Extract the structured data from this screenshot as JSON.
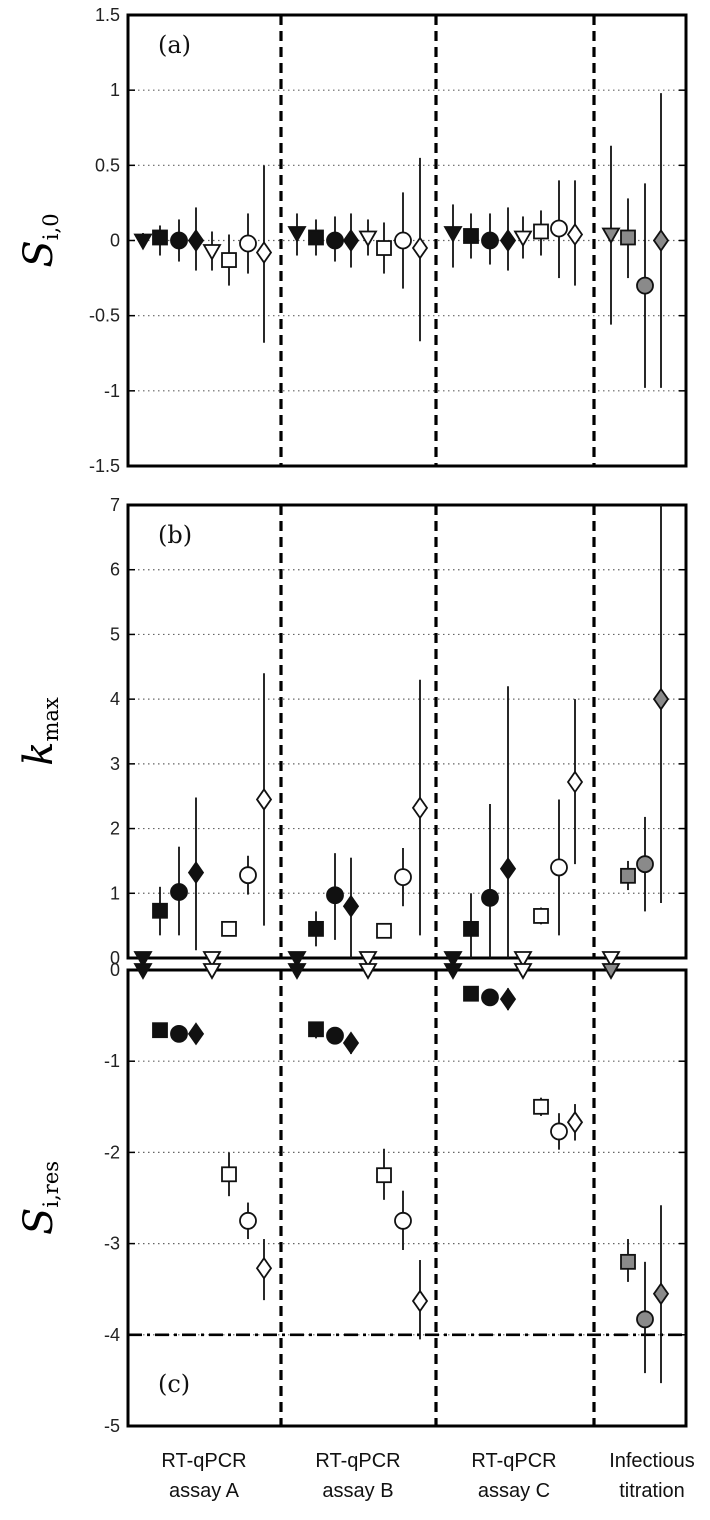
{
  "groups": [
    "RT-qPCR assay A",
    "RT-qPCR assay B",
    "RT-qPCR assay C",
    "Infectious titration"
  ],
  "group_labels": [
    [
      "RT-qPCR",
      "assay A"
    ],
    [
      "RT-qPCR",
      "assay B"
    ],
    [
      "RT-qPCR",
      "assay C"
    ],
    [
      "Infectious",
      "titration"
    ]
  ],
  "chart_data": [
    {
      "type": "scatter",
      "panel_label": "(a)",
      "ylabel": "S",
      "ylabel_sub": "i,0",
      "ylim": [
        -1.5,
        1.5
      ],
      "yticks": [
        "1.5",
        "1",
        "0.5",
        "0",
        "-0.5",
        "-1",
        "-1.5"
      ],
      "ytick_values": [
        1.5,
        1,
        0.5,
        0,
        -0.5,
        -1,
        -1.5
      ],
      "grid": "horizontal dotted",
      "points": [
        {
          "group": 0,
          "marker": "tri",
          "fill": "filled",
          "y": 0.0,
          "lo": -0.05,
          "hi": 0.05
        },
        {
          "group": 0,
          "marker": "square",
          "fill": "filled",
          "y": 0.02,
          "lo": -0.1,
          "hi": 0.1
        },
        {
          "group": 0,
          "marker": "circle",
          "fill": "filled",
          "y": 0.0,
          "lo": -0.14,
          "hi": 0.14
        },
        {
          "group": 0,
          "marker": "diamond",
          "fill": "filled",
          "y": 0.0,
          "lo": -0.2,
          "hi": 0.22
        },
        {
          "group": 0,
          "marker": "tri",
          "fill": "open",
          "y": -0.07,
          "lo": -0.2,
          "hi": 0.06
        },
        {
          "group": 0,
          "marker": "square",
          "fill": "open",
          "y": -0.13,
          "lo": -0.3,
          "hi": 0.04
        },
        {
          "group": 0,
          "marker": "circle",
          "fill": "open",
          "y": -0.02,
          "lo": -0.22,
          "hi": 0.18
        },
        {
          "group": 0,
          "marker": "diamond",
          "fill": "open",
          "y": -0.08,
          "lo": -0.68,
          "hi": 0.5
        },
        {
          "group": 1,
          "marker": "tri",
          "fill": "filled",
          "y": 0.05,
          "lo": -0.1,
          "hi": 0.18
        },
        {
          "group": 1,
          "marker": "square",
          "fill": "filled",
          "y": 0.02,
          "lo": -0.1,
          "hi": 0.14
        },
        {
          "group": 1,
          "marker": "circle",
          "fill": "filled",
          "y": 0.0,
          "lo": -0.14,
          "hi": 0.16
        },
        {
          "group": 1,
          "marker": "diamond",
          "fill": "filled",
          "y": 0.0,
          "lo": -0.18,
          "hi": 0.18
        },
        {
          "group": 1,
          "marker": "tri",
          "fill": "open",
          "y": 0.02,
          "lo": -0.1,
          "hi": 0.14
        },
        {
          "group": 1,
          "marker": "square",
          "fill": "open",
          "y": -0.05,
          "lo": -0.22,
          "hi": 0.12
        },
        {
          "group": 1,
          "marker": "circle",
          "fill": "open",
          "y": 0.0,
          "lo": -0.32,
          "hi": 0.32
        },
        {
          "group": 1,
          "marker": "diamond",
          "fill": "open",
          "y": -0.05,
          "lo": -0.67,
          "hi": 0.55
        },
        {
          "group": 2,
          "marker": "tri",
          "fill": "filled",
          "y": 0.05,
          "lo": -0.18,
          "hi": 0.24
        },
        {
          "group": 2,
          "marker": "square",
          "fill": "filled",
          "y": 0.03,
          "lo": -0.12,
          "hi": 0.18
        },
        {
          "group": 2,
          "marker": "circle",
          "fill": "filled",
          "y": 0.0,
          "lo": -0.16,
          "hi": 0.18
        },
        {
          "group": 2,
          "marker": "diamond",
          "fill": "filled",
          "y": 0.0,
          "lo": -0.2,
          "hi": 0.22
        },
        {
          "group": 2,
          "marker": "tri",
          "fill": "open",
          "y": 0.02,
          "lo": -0.12,
          "hi": 0.16
        },
        {
          "group": 2,
          "marker": "square",
          "fill": "open",
          "y": 0.06,
          "lo": -0.1,
          "hi": 0.2
        },
        {
          "group": 2,
          "marker": "circle",
          "fill": "open",
          "y": 0.08,
          "lo": -0.25,
          "hi": 0.4
        },
        {
          "group": 2,
          "marker": "diamond",
          "fill": "open",
          "y": 0.04,
          "lo": -0.3,
          "hi": 0.4
        },
        {
          "group": 3,
          "marker": "tri",
          "fill": "gray",
          "y": 0.04,
          "lo": -0.56,
          "hi": 0.63
        },
        {
          "group": 3,
          "marker": "square",
          "fill": "gray",
          "y": 0.02,
          "lo": -0.25,
          "hi": 0.28
        },
        {
          "group": 3,
          "marker": "circle",
          "fill": "gray",
          "y": -0.3,
          "lo": -0.98,
          "hi": 0.38
        },
        {
          "group": 3,
          "marker": "diamond",
          "fill": "gray",
          "y": 0.0,
          "lo": -0.98,
          "hi": 0.98
        }
      ]
    },
    {
      "type": "scatter",
      "panel_label": "(b)",
      "ylabel": "k",
      "ylabel_sub": "max",
      "ylim": [
        0,
        7
      ],
      "yticks": [
        "7",
        "6",
        "5",
        "4",
        "3",
        "2",
        "1",
        "0"
      ],
      "ytick_values": [
        7,
        6,
        5,
        4,
        3,
        2,
        1,
        0
      ],
      "grid": "horizontal dotted",
      "points": [
        {
          "group": 0,
          "marker": "tri",
          "fill": "filled",
          "y": 0.0,
          "lo": 0.0,
          "hi": 0.0
        },
        {
          "group": 0,
          "marker": "square",
          "fill": "filled",
          "y": 0.73,
          "lo": 0.35,
          "hi": 1.1
        },
        {
          "group": 0,
          "marker": "circle",
          "fill": "filled",
          "y": 1.02,
          "lo": 0.35,
          "hi": 1.72
        },
        {
          "group": 0,
          "marker": "diamond",
          "fill": "filled",
          "y": 1.32,
          "lo": 0.12,
          "hi": 2.48
        },
        {
          "group": 0,
          "marker": "tri",
          "fill": "open",
          "y": 0.0,
          "lo": 0.0,
          "hi": 0.0
        },
        {
          "group": 0,
          "marker": "square",
          "fill": "open",
          "y": 0.45,
          "lo": 0.35,
          "hi": 0.55
        },
        {
          "group": 0,
          "marker": "circle",
          "fill": "open",
          "y": 1.28,
          "lo": 0.98,
          "hi": 1.58
        },
        {
          "group": 0,
          "marker": "diamond",
          "fill": "open",
          "y": 2.45,
          "lo": 0.5,
          "hi": 4.4
        },
        {
          "group": 1,
          "marker": "tri",
          "fill": "filled",
          "y": 0.0,
          "lo": 0.0,
          "hi": 0.0
        },
        {
          "group": 1,
          "marker": "square",
          "fill": "filled",
          "y": 0.45,
          "lo": 0.18,
          "hi": 0.72
        },
        {
          "group": 1,
          "marker": "circle",
          "fill": "filled",
          "y": 0.97,
          "lo": 0.28,
          "hi": 1.62
        },
        {
          "group": 1,
          "marker": "diamond",
          "fill": "filled",
          "y": 0.8,
          "lo": 0.0,
          "hi": 1.55
        },
        {
          "group": 1,
          "marker": "tri",
          "fill": "open",
          "y": 0.0,
          "lo": 0.0,
          "hi": 0.0
        },
        {
          "group": 1,
          "marker": "square",
          "fill": "open",
          "y": 0.42,
          "lo": 0.32,
          "hi": 0.52
        },
        {
          "group": 1,
          "marker": "circle",
          "fill": "open",
          "y": 1.25,
          "lo": 0.8,
          "hi": 1.7
        },
        {
          "group": 1,
          "marker": "diamond",
          "fill": "open",
          "y": 2.32,
          "lo": 0.35,
          "hi": 4.3
        },
        {
          "group": 2,
          "marker": "tri",
          "fill": "filled",
          "y": 0.0,
          "lo": 0.0,
          "hi": 0.0
        },
        {
          "group": 2,
          "marker": "square",
          "fill": "filled",
          "y": 0.45,
          "lo": 0.0,
          "hi": 1.0
        },
        {
          "group": 2,
          "marker": "circle",
          "fill": "filled",
          "y": 0.93,
          "lo": 0.0,
          "hi": 2.38
        },
        {
          "group": 2,
          "marker": "diamond",
          "fill": "filled",
          "y": 1.38,
          "lo": 0.0,
          "hi": 4.2
        },
        {
          "group": 2,
          "marker": "tri",
          "fill": "open",
          "y": 0.0,
          "lo": 0.0,
          "hi": 0.0
        },
        {
          "group": 2,
          "marker": "square",
          "fill": "open",
          "y": 0.65,
          "lo": 0.52,
          "hi": 0.78
        },
        {
          "group": 2,
          "marker": "circle",
          "fill": "open",
          "y": 1.4,
          "lo": 0.35,
          "hi": 2.45
        },
        {
          "group": 2,
          "marker": "diamond",
          "fill": "open",
          "y": 2.72,
          "lo": 1.45,
          "hi": 4.0
        },
        {
          "group": 3,
          "marker": "tri",
          "fill": "open",
          "y": 0.0,
          "lo": 0.0,
          "hi": 0.0
        },
        {
          "group": 3,
          "marker": "square",
          "fill": "gray",
          "y": 1.27,
          "lo": 1.05,
          "hi": 1.5
        },
        {
          "group": 3,
          "marker": "circle",
          "fill": "gray",
          "y": 1.45,
          "lo": 0.72,
          "hi": 2.18
        },
        {
          "group": 3,
          "marker": "diamond",
          "fill": "gray",
          "y": 4.0,
          "lo": 0.85,
          "hi": 7.0
        }
      ]
    },
    {
      "type": "scatter",
      "panel_label": "(c)",
      "ylabel": "S",
      "ylabel_sub": "i,res",
      "ylim": [
        -5,
        0
      ],
      "yticks": [
        "0",
        "-1",
        "-2",
        "-3",
        "-4",
        "-5"
      ],
      "ytick_values": [
        0,
        -1,
        -2,
        -3,
        -4,
        -5
      ],
      "grid": "horizontal dotted",
      "reference_line": -4,
      "points": [
        {
          "group": 0,
          "marker": "tri",
          "fill": "filled",
          "y": 0.0,
          "lo": 0.0,
          "hi": 0.0
        },
        {
          "group": 0,
          "marker": "square",
          "fill": "filled",
          "y": -0.66,
          "lo": -0.72,
          "hi": -0.6
        },
        {
          "group": 0,
          "marker": "circle",
          "fill": "filled",
          "y": -0.7,
          "lo": -0.78,
          "hi": -0.62
        },
        {
          "group": 0,
          "marker": "diamond",
          "fill": "filled",
          "y": -0.7,
          "lo": -0.8,
          "hi": -0.6
        },
        {
          "group": 0,
          "marker": "tri",
          "fill": "open",
          "y": 0.0,
          "lo": 0.0,
          "hi": 0.0
        },
        {
          "group": 0,
          "marker": "square",
          "fill": "open",
          "y": -2.24,
          "lo": -2.48,
          "hi": -2.0
        },
        {
          "group": 0,
          "marker": "circle",
          "fill": "open",
          "y": -2.75,
          "lo": -2.95,
          "hi": -2.55
        },
        {
          "group": 0,
          "marker": "diamond",
          "fill": "open",
          "y": -3.27,
          "lo": -3.62,
          "hi": -2.95
        },
        {
          "group": 1,
          "marker": "tri",
          "fill": "filled",
          "y": 0.0,
          "lo": 0.0,
          "hi": 0.0
        },
        {
          "group": 1,
          "marker": "square",
          "fill": "filled",
          "y": -0.65,
          "lo": -0.75,
          "hi": -0.57
        },
        {
          "group": 1,
          "marker": "circle",
          "fill": "filled",
          "y": -0.72,
          "lo": -0.8,
          "hi": -0.64
        },
        {
          "group": 1,
          "marker": "diamond",
          "fill": "filled",
          "y": -0.8,
          "lo": -0.92,
          "hi": -0.7
        },
        {
          "group": 1,
          "marker": "tri",
          "fill": "open",
          "y": 0.0,
          "lo": 0.0,
          "hi": 0.0
        },
        {
          "group": 1,
          "marker": "square",
          "fill": "open",
          "y": -2.25,
          "lo": -2.52,
          "hi": -1.96
        },
        {
          "group": 1,
          "marker": "circle",
          "fill": "open",
          "y": -2.75,
          "lo": -3.07,
          "hi": -2.42
        },
        {
          "group": 1,
          "marker": "diamond",
          "fill": "open",
          "y": -3.63,
          "lo": -4.05,
          "hi": -3.18
        },
        {
          "group": 2,
          "marker": "tri",
          "fill": "filled",
          "y": 0.0,
          "lo": 0.0,
          "hi": 0.0
        },
        {
          "group": 2,
          "marker": "square",
          "fill": "filled",
          "y": -0.26,
          "lo": -0.3,
          "hi": -0.22
        },
        {
          "group": 2,
          "marker": "circle",
          "fill": "filled",
          "y": -0.3,
          "lo": -0.36,
          "hi": -0.24
        },
        {
          "group": 2,
          "marker": "diamond",
          "fill": "filled",
          "y": -0.32,
          "lo": -0.44,
          "hi": -0.2
        },
        {
          "group": 2,
          "marker": "tri",
          "fill": "open",
          "y": 0.0,
          "lo": 0.0,
          "hi": 0.0
        },
        {
          "group": 2,
          "marker": "square",
          "fill": "open",
          "y": -1.5,
          "lo": -1.6,
          "hi": -1.4
        },
        {
          "group": 2,
          "marker": "circle",
          "fill": "open",
          "y": -1.77,
          "lo": -1.97,
          "hi": -1.57
        },
        {
          "group": 2,
          "marker": "diamond",
          "fill": "open",
          "y": -1.67,
          "lo": -1.87,
          "hi": -1.47
        },
        {
          "group": 3,
          "marker": "tri",
          "fill": "gray",
          "y": 0.0,
          "lo": 0.0,
          "hi": 0.0
        },
        {
          "group": 3,
          "marker": "square",
          "fill": "gray",
          "y": -3.2,
          "lo": -3.42,
          "hi": -2.95
        },
        {
          "group": 3,
          "marker": "circle",
          "fill": "gray",
          "y": -3.83,
          "lo": -4.42,
          "hi": -3.2
        },
        {
          "group": 3,
          "marker": "diamond",
          "fill": "gray",
          "y": -3.55,
          "lo": -4.53,
          "hi": -2.58
        }
      ]
    }
  ],
  "colors": {
    "filled": "#111111",
    "gray": "#8a8a8a",
    "open": "#ffffff"
  }
}
